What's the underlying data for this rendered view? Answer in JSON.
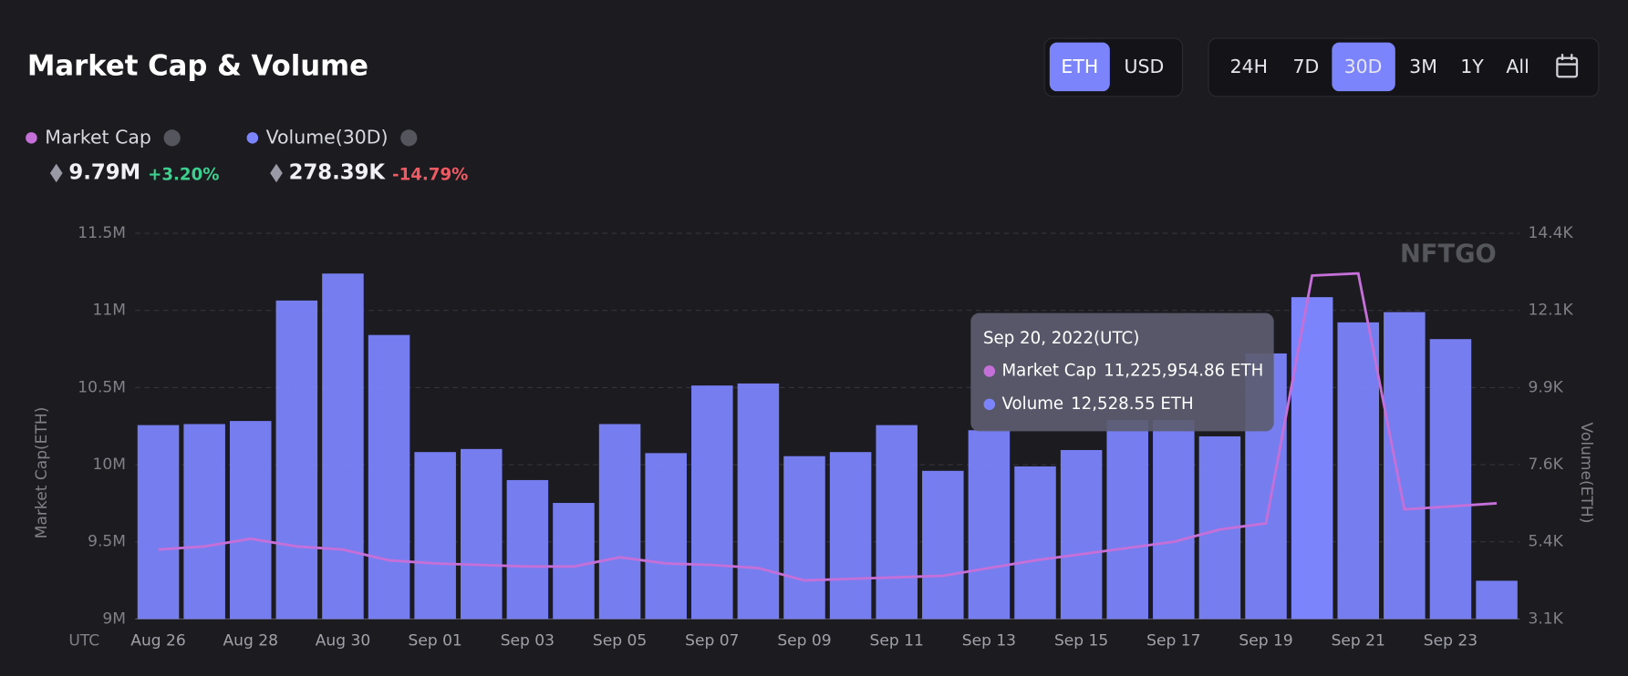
{
  "chart_data": {
    "type": "bar-line",
    "title": "Market Cap & Volume",
    "categories": [
      "Aug 26",
      null,
      "Aug 28",
      null,
      "Aug 30",
      null,
      "Sep 01",
      null,
      "Sep 03",
      null,
      "Sep 05",
      null,
      "Sep 07",
      null,
      "Sep 09",
      null,
      "Sep 11",
      null,
      "Sep 13",
      null,
      "Sep 15",
      null,
      "Sep 17",
      null,
      "Sep 19",
      null,
      "Sep 21",
      null,
      "Sep 23",
      null
    ],
    "x_label": "UTC",
    "y_label": "Market Cap(ETH)",
    "y2_label": "Volume(ETH)",
    "series": [
      {
        "name": "Market Cap",
        "color": "#c56fd8",
        "kind": "line",
        "axis": "y",
        "values": [
          9450000,
          9470000,
          9520000,
          9470000,
          9450000,
          9380000,
          9360000,
          9350000,
          9340000,
          9340000,
          9400000,
          9360000,
          9350000,
          9330000,
          9250000,
          9260000,
          9270000,
          9280000,
          9330000,
          9380000,
          9420000,
          9460000,
          9500000,
          9580000,
          9620000,
          11225954.86,
          11240000,
          9710000,
          9730000,
          9750000
        ]
      },
      {
        "name": "Volume(30D)",
        "color": "#7b84fb",
        "kind": "bar",
        "axis": "y2",
        "values": [
          8780,
          8810,
          8900,
          12430,
          13220,
          11420,
          7990,
          8080,
          7170,
          6500,
          8810,
          7960,
          9940,
          10000,
          7870,
          7990,
          8780,
          7440,
          8630,
          7570,
          8050,
          8930,
          8930,
          8450,
          10880,
          12528.55,
          11790,
          12090,
          11300,
          4220
        ]
      }
    ],
    "ylim": [
      9000000,
      11500000
    ],
    "yticks": [
      {
        "value": 9000000,
        "label": "9M"
      },
      {
        "value": 9500000,
        "label": "9.5M"
      },
      {
        "value": 10000000,
        "label": "10M"
      },
      {
        "value": 10500000,
        "label": "10.5M"
      },
      {
        "value": 11000000,
        "label": "11M"
      },
      {
        "value": 11500000,
        "label": "11.5M"
      }
    ],
    "y2lim": [
      3100,
      14400
    ],
    "y2ticks": [
      {
        "value": 3100,
        "label": "3.1K"
      },
      {
        "value": 5360,
        "label": "5.4K"
      },
      {
        "value": 7620,
        "label": "7.6K"
      },
      {
        "value": 9880,
        "label": "9.9K"
      },
      {
        "value": 12140,
        "label": "12.1K"
      },
      {
        "value": 14400,
        "label": "14.4K"
      }
    ],
    "grid": true,
    "stats": [
      {
        "value": "9.79M",
        "change": "+3.20%"
      },
      {
        "value": "278.39K",
        "change": "-14.79%"
      }
    ],
    "tooltip": {
      "date": "Sep 20, 2022(UTC)",
      "rows": [
        {
          "label": "Market Cap",
          "value": "11,225,954.86 ETH"
        },
        {
          "label": "Volume",
          "value": "12,528.55 ETH"
        }
      ]
    },
    "watermark": "NFTGO"
  },
  "controls": {
    "currency": [
      "ETH",
      "USD"
    ],
    "ranges": [
      "24H",
      "7D",
      "30D",
      "3M",
      "1Y",
      "All"
    ]
  }
}
